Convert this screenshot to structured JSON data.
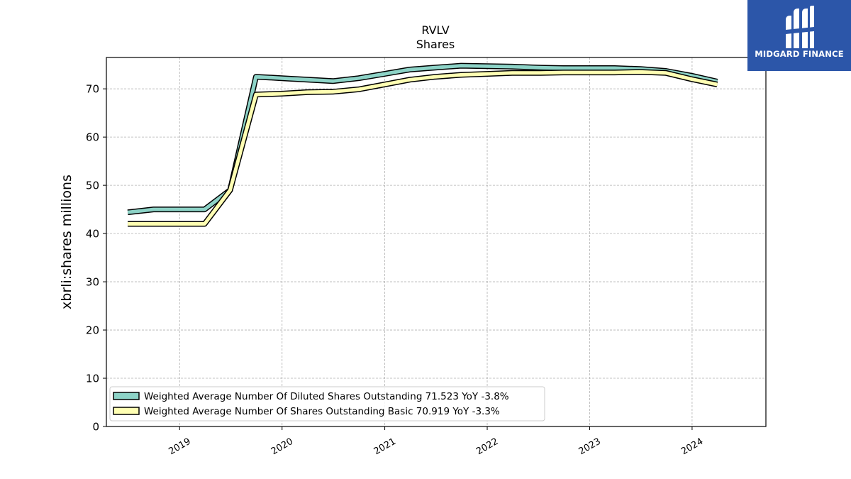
{
  "brand": {
    "name": "MIDGARD FINANCE",
    "bg_color": "#2c56a9"
  },
  "chart_data": {
    "type": "line",
    "title": "RVLV",
    "subtitle": "Shares",
    "xlabel": "",
    "ylabel": "xbrli:shares millions",
    "xlim": [
      "2018-04-15",
      "2024-09-20"
    ],
    "ylim": [
      0,
      76.5
    ],
    "x_ticks": [
      "2019",
      "2020",
      "2021",
      "2022",
      "2023",
      "2024"
    ],
    "y_ticks": [
      0,
      10,
      20,
      30,
      40,
      50,
      60,
      70
    ],
    "grid": true,
    "legend_position": "lower-left",
    "series": [
      {
        "name": "Weighted Average Number Of Diluted Shares Outstanding",
        "legend_label": "Weighted Average Number Of Diluted Shares Outstanding  71.523 YoY -3.8%",
        "color": "#8dd3c7",
        "x": [
          "2018-06-30",
          "2018-09-30",
          "2018-12-31",
          "2019-03-31",
          "2019-06-30",
          "2019-09-30",
          "2019-12-31",
          "2020-03-31",
          "2020-06-30",
          "2020-09-30",
          "2020-12-31",
          "2021-03-31",
          "2021-06-30",
          "2021-09-30",
          "2021-12-31",
          "2022-03-31",
          "2022-06-30",
          "2022-09-30",
          "2022-12-31",
          "2023-03-31",
          "2023-06-30",
          "2023-09-30",
          "2023-12-31",
          "2024-03-31"
        ],
        "values": [
          44.4,
          45.0,
          45.0,
          45.0,
          49.0,
          72.5,
          72.2,
          71.9,
          71.6,
          72.2,
          73.1,
          74.0,
          74.4,
          74.8,
          74.7,
          74.6,
          74.4,
          74.3,
          74.3,
          74.3,
          74.1,
          73.7,
          72.7,
          71.5
        ]
      },
      {
        "name": "Weighted Average Number Of Shares Outstanding Basic",
        "legend_label": "Weighted Average Number Of Shares Outstanding Basic  70.919 YoY -3.3%",
        "color": "#ffffb3",
        "x": [
          "2018-06-30",
          "2018-09-30",
          "2018-12-31",
          "2019-03-31",
          "2019-06-30",
          "2019-09-30",
          "2019-12-31",
          "2020-03-31",
          "2020-06-30",
          "2020-09-30",
          "2020-12-31",
          "2021-03-31",
          "2021-06-30",
          "2021-09-30",
          "2021-12-31",
          "2022-03-31",
          "2022-06-30",
          "2022-09-30",
          "2022-12-31",
          "2023-03-31",
          "2023-06-30",
          "2023-09-30",
          "2023-12-31",
          "2024-03-31"
        ],
        "values": [
          42.0,
          42.0,
          42.0,
          42.0,
          49.0,
          68.8,
          69.0,
          69.3,
          69.4,
          69.9,
          70.9,
          71.9,
          72.5,
          72.9,
          73.1,
          73.3,
          73.3,
          73.4,
          73.4,
          73.4,
          73.5,
          73.3,
          72.0,
          70.9
        ]
      }
    ]
  }
}
